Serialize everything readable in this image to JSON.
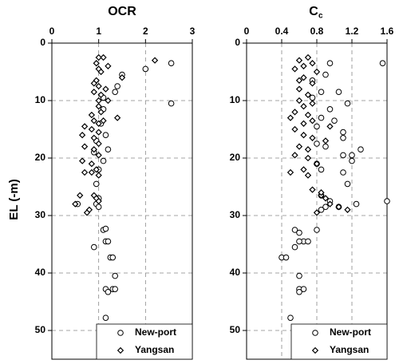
{
  "chart_data": [
    {
      "type": "scatter",
      "title": "OCR",
      "y_label": "EL (-m)",
      "xlim": [
        0,
        3
      ],
      "xticks": [
        0,
        1,
        2,
        3
      ],
      "ylim": [
        0,
        55
      ],
      "yticks": [
        0,
        10,
        20,
        30,
        40,
        50
      ],
      "y_inverted": true,
      "grid": true,
      "legend": "lower right",
      "series": [
        {
          "name": "New-port",
          "marker": "circle",
          "color": "#000000",
          "x": [
            2.55,
            2.0,
            1.5,
            1.4,
            1.35,
            1.1,
            2.55,
            1.1,
            1.05,
            1.15,
            1.2,
            0.9,
            1.1,
            1.0,
            0.95,
            1.0,
            0.95,
            1.0,
            0.55,
            1.1,
            1.15,
            1.15,
            1.2,
            0.9,
            1.25,
            1.3,
            1.35,
            1.15,
            1.2,
            1.3,
            1.35,
            1.15,
            0.95
          ],
          "values": [
            3.5,
            4.5,
            5.5,
            7.5,
            8.5,
            9.5,
            10.5,
            11.5,
            14,
            16,
            18.5,
            19,
            20.5,
            22,
            24.5,
            27,
            28,
            28.5,
            28,
            32.5,
            32.3,
            34.5,
            34.5,
            35.5,
            37.3,
            37.3,
            40.5,
            42.8,
            43.3,
            42.8,
            42.8,
            47.8,
            17
          ]
        },
        {
          "name": "Yangsan",
          "marker": "diamond",
          "color": "#000000",
          "x": [
            1.0,
            1.1,
            0.95,
            1.0,
            1.2,
            2.2,
            1.05,
            1.5,
            0.95,
            0.9,
            1.0,
            1.15,
            0.9,
            1.05,
            1.0,
            1.2,
            1.0,
            1.05,
            0.85,
            1.4,
            0.9,
            1.0,
            0.7,
            0.85,
            1.0,
            0.65,
            0.9,
            1.0,
            0.7,
            0.9,
            1.0,
            0.65,
            0.85,
            0.95,
            0.7,
            1.0,
            0.6,
            0.9,
            0.95,
            1.0,
            0.5,
            0.8,
            0.75,
            0.85,
            1.1
          ],
          "values": [
            2.5,
            2.5,
            3.5,
            4.5,
            4,
            3,
            5,
            6,
            6.5,
            7,
            7.5,
            8,
            8.5,
            9,
            10,
            10,
            11,
            12,
            12.5,
            13,
            13.5,
            14,
            14.5,
            15,
            15.5,
            16,
            16.5,
            17.5,
            18,
            18.5,
            19.5,
            20.5,
            21,
            22,
            22.5,
            23,
            26.5,
            26.5,
            27,
            27.5,
            28,
            29,
            29.5,
            22.5,
            13.5
          ]
        }
      ]
    },
    {
      "type": "scatter",
      "title": "C",
      "title_subscript": "c",
      "xlim": [
        0,
        1.6
      ],
      "xticks": [
        0,
        0.4,
        0.8,
        1.2,
        1.6
      ],
      "ylim": [
        0,
        55
      ],
      "yticks": [
        0,
        10,
        20,
        30,
        40,
        50
      ],
      "y_inverted": true,
      "grid": true,
      "legend": "lower right",
      "series": [
        {
          "name": "New-port",
          "marker": "circle",
          "color": "#000000",
          "x": [
            1.55,
            0.95,
            0.9,
            0.75,
            0.85,
            1.05,
            0.75,
            1.15,
            0.95,
            0.85,
            1.0,
            0.8,
            1.1,
            1.1,
            0.8,
            1.3,
            0.9,
            1.2,
            1.1,
            1.2,
            0.8,
            0.85,
            1.1,
            1.15,
            0.85,
            0.95,
            1.25,
            0.9,
            1.6,
            1.05,
            0.85,
            0.55,
            0.6,
            0.65,
            0.55,
            0.6,
            0.7,
            0.4,
            0.45,
            0.6,
            0.6,
            0.65,
            0.6,
            0.5,
            0.8
          ],
          "values": [
            3.5,
            3.5,
            5.5,
            6.5,
            8.5,
            8.5,
            9.5,
            10.5,
            11.5,
            13,
            13.5,
            14.5,
            15.5,
            16.5,
            17.5,
            18.5,
            18,
            19.5,
            19.5,
            20.5,
            21,
            22,
            22.5,
            24.5,
            26.5,
            27.5,
            28,
            28.5,
            27.5,
            28.5,
            29,
            32.5,
            33,
            34.5,
            35.5,
            34.5,
            34.5,
            37.3,
            37.3,
            40.5,
            42.8,
            42.8,
            43.3,
            47.8,
            32.5
          ]
        },
        {
          "name": "Yangsan",
          "marker": "diamond",
          "color": "#000000",
          "x": [
            0.7,
            0.6,
            0.75,
            0.65,
            0.55,
            0.8,
            0.65,
            0.6,
            0.75,
            0.6,
            0.7,
            0.6,
            0.75,
            0.65,
            0.55,
            0.7,
            0.5,
            0.75,
            0.65,
            0.95,
            0.55,
            0.65,
            0.75,
            0.9,
            0.6,
            0.7,
            0.55,
            0.7,
            0.8,
            0.5,
            0.7,
            0.85,
            0.9,
            0.95,
            1.05,
            1.15,
            0.8,
            0.65,
            0.75,
            0.85
          ],
          "values": [
            2.5,
            3,
            3.5,
            4,
            4.5,
            5,
            6,
            6.5,
            7,
            8,
            9,
            10,
            10.5,
            11,
            12,
            12.5,
            13,
            13.5,
            14,
            14.5,
            15,
            16,
            16.5,
            17,
            18,
            18.5,
            19.5,
            20,
            21,
            22.5,
            23,
            26.5,
            27,
            28,
            28.5,
            29,
            29.5,
            22,
            25.5,
            26
          ]
        }
      ]
    }
  ]
}
